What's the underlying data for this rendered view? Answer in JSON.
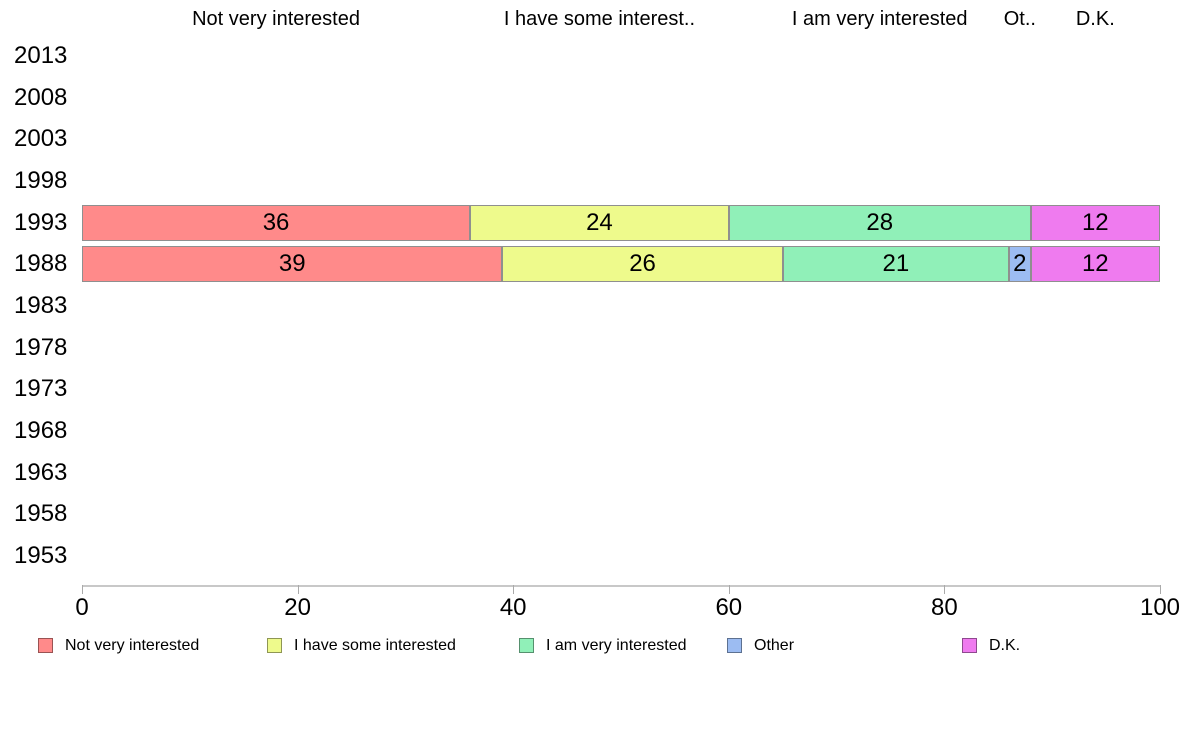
{
  "chart_data": {
    "type": "bar",
    "orientation": "horizontal",
    "stacked": true,
    "title": "",
    "xlabel": "",
    "ylabel": "",
    "xlim": [
      0,
      100
    ],
    "x_ticks": [
      "0",
      "20",
      "40",
      "60",
      "80",
      "100"
    ],
    "grid": false,
    "legend_position": "bottom",
    "categories": [
      "2013",
      "2008",
      "2003",
      "1998",
      "1993",
      "1988",
      "1983",
      "1978",
      "1973",
      "1968",
      "1963",
      "1958",
      "1953"
    ],
    "series": [
      {
        "name": "Not very interested",
        "header": "Not very interested",
        "color": "#ff8a8a",
        "values": {
          "1993": 36,
          "1988": 39
        }
      },
      {
        "name": "I have some interested",
        "header": "I have some interest..",
        "color": "#eefa8c",
        "values": {
          "1993": 24,
          "1988": 26
        }
      },
      {
        "name": "I am very interested",
        "header": "I am very interested",
        "color": "#90f0b8",
        "values": {
          "1993": 28,
          "1988": 21
        }
      },
      {
        "name": "Other",
        "header": "Ot..",
        "color": "#9cbcf2",
        "values": {
          "1988": 2
        }
      },
      {
        "name": "D.K.",
        "header": "D.K.",
        "color": "#ef7bef",
        "values": {
          "1993": 12,
          "1988": 12
        }
      }
    ]
  },
  "legend": {
    "items": [
      {
        "label": "Not very interested",
        "color": "#ff8a8a"
      },
      {
        "label": "I have some interested",
        "color": "#eefa8c"
      },
      {
        "label": "I am very interested",
        "color": "#90f0b8"
      },
      {
        "label": "Other",
        "color": "#9cbcf2"
      },
      {
        "label": "D.K.",
        "color": "#ef7bef"
      }
    ]
  }
}
